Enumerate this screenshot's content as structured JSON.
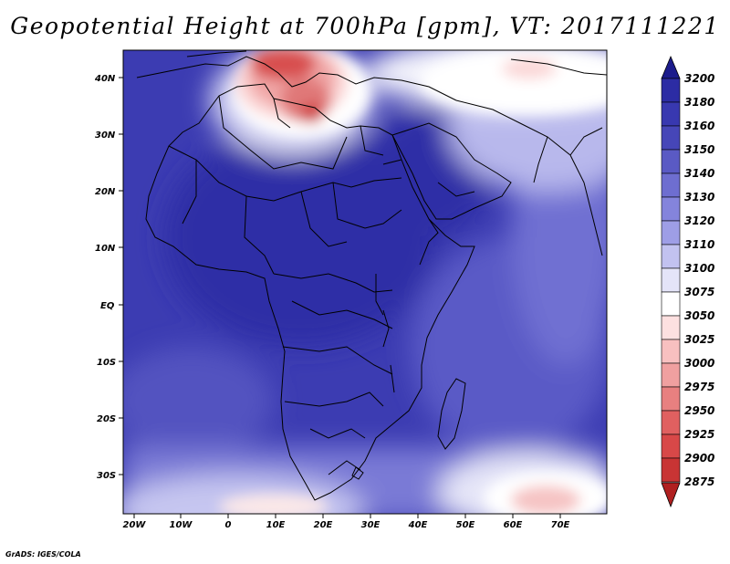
{
  "title": "Geopotential Height at 700hPa [gpm], VT: 2017111221",
  "credit": "GrADS: IGES/COLA",
  "map": {
    "lat_labels": [
      "40N",
      "30N",
      "20N",
      "10N",
      "EQ",
      "10S",
      "20S",
      "30S"
    ],
    "lon_labels": [
      "20W",
      "10W",
      "0",
      "10E",
      "20E",
      "30E",
      "40E",
      "50E",
      "60E",
      "70E"
    ]
  },
  "colorbar": {
    "levels": [
      "3200",
      "3180",
      "3160",
      "3150",
      "3140",
      "3130",
      "3120",
      "3110",
      "3100",
      "3075",
      "3050",
      "3025",
      "3000",
      "2975",
      "2950",
      "2925",
      "2900",
      "2875"
    ],
    "colors": {
      "above": "#1c1c8c",
      "bands": [
        "#2c2ca4",
        "#3838b0",
        "#4646b8",
        "#5a5ac4",
        "#6e6ed0",
        "#8484dc",
        "#9e9ee6",
        "#c2c2f0",
        "#e4e4f8",
        "#ffffff",
        "#fde0e0",
        "#f8c0c0",
        "#f0a0a0",
        "#e88080",
        "#e06060",
        "#d84848",
        "#c83434"
      ],
      "below": "#b02020"
    }
  }
}
